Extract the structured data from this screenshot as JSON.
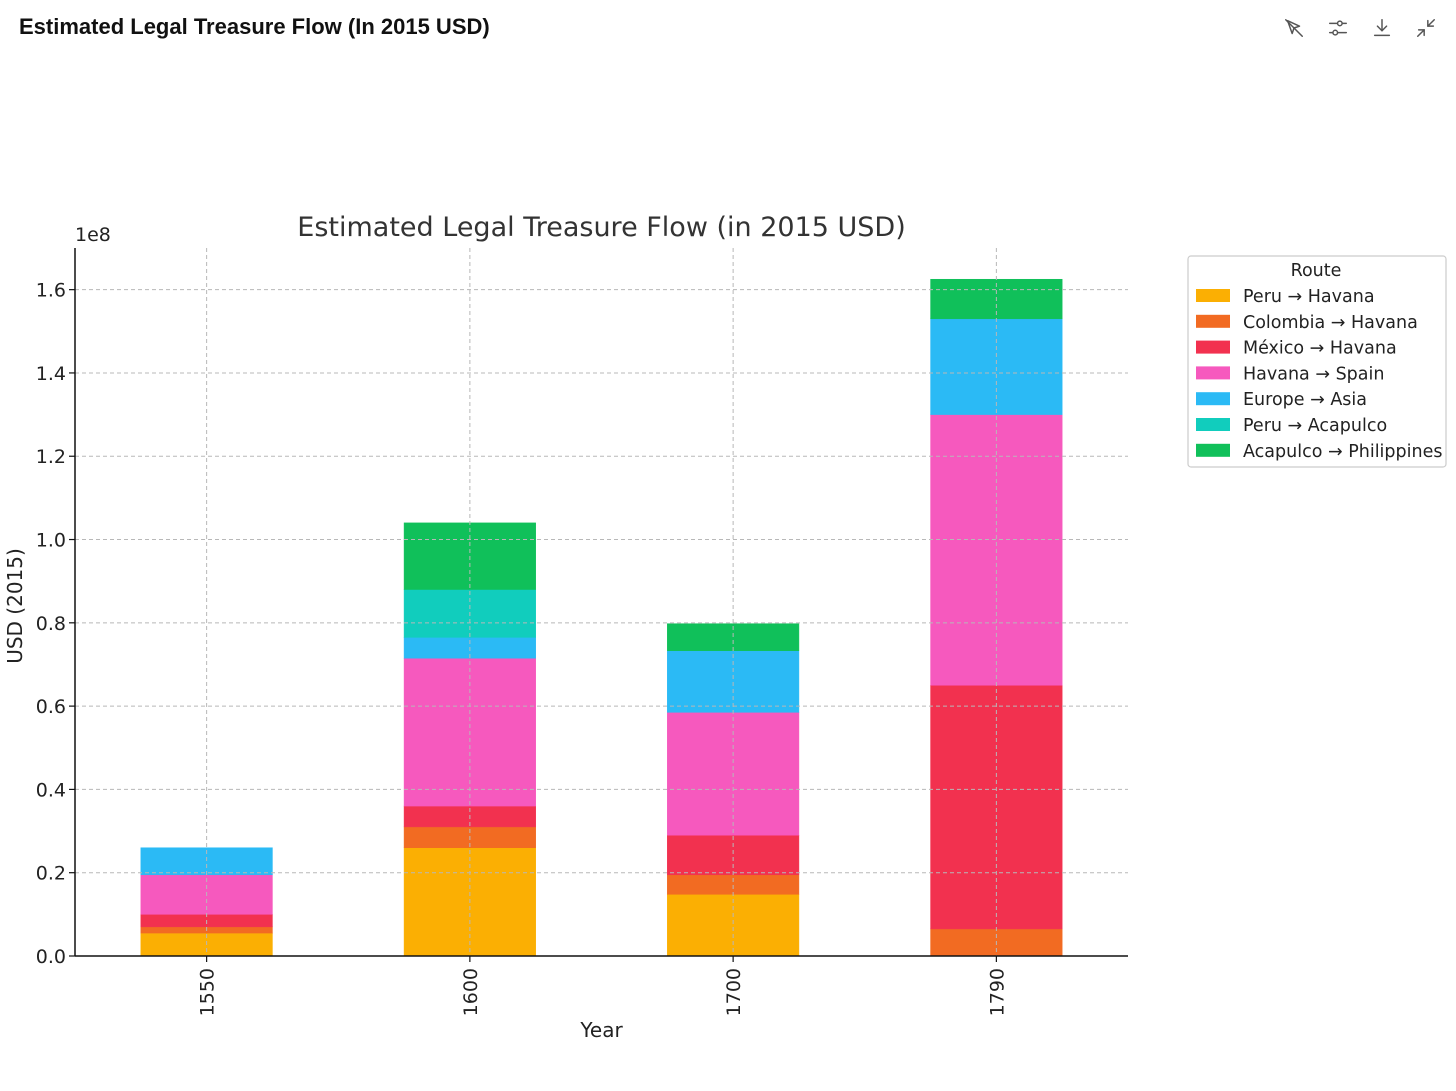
{
  "header": {
    "title": "Estimated Legal Treasure Flow (In 2015 USD)",
    "icons": [
      "cursor-off-icon",
      "sliders-icon",
      "download-icon",
      "collapse-icon"
    ]
  },
  "colors": {
    "Peru → Havana": "#fbaf03",
    "Colombia → Havana": "#f26b22",
    "México → Havana": "#f2314f",
    "Havana → Spain": "#f659be",
    "Europe → Asia": "#2bbaf5",
    "Peru → Acapulco": "#11cdbd",
    "Acapulco → Philippines": "#10c05a"
  },
  "chart_data": {
    "type": "bar",
    "stacked": true,
    "title": "Estimated Legal Treasure Flow (in 2015 USD)",
    "xlabel": "Year",
    "ylabel": "USD (2015)",
    "y_offset_label": "1e8",
    "ylim": [
      0,
      1.7
    ],
    "yticks": [
      0.0,
      0.2,
      0.4,
      0.6,
      0.8,
      1.0,
      1.2,
      1.4,
      1.6
    ],
    "ytick_labels": [
      "0.0",
      "0.2",
      "0.4",
      "0.6",
      "0.8",
      "1.0",
      "1.2",
      "1.4",
      "1.6"
    ],
    "grid": true,
    "categories": [
      "1550",
      "1600",
      "1700",
      "1790"
    ],
    "legend_title": "Route",
    "legend_position": "outside-right",
    "series": [
      {
        "name": "Peru → Havana",
        "values": [
          0.055,
          0.26,
          0.148,
          0.0
        ]
      },
      {
        "name": "Colombia → Havana",
        "values": [
          0.015,
          0.05,
          0.047,
          0.065
        ]
      },
      {
        "name": "México → Havana",
        "values": [
          0.03,
          0.05,
          0.095,
          0.585
        ]
      },
      {
        "name": "Havana → Spain",
        "values": [
          0.095,
          0.355,
          0.295,
          0.65
        ]
      },
      {
        "name": "Europe → Asia",
        "values": [
          0.065,
          0.05,
          0.148,
          0.23
        ]
      },
      {
        "name": "Peru → Acapulco",
        "values": [
          0.0,
          0.115,
          0.0,
          0.0
        ]
      },
      {
        "name": "Acapulco → Philippines",
        "values": [
          0.0,
          0.16,
          0.065,
          0.095
        ]
      }
    ]
  }
}
